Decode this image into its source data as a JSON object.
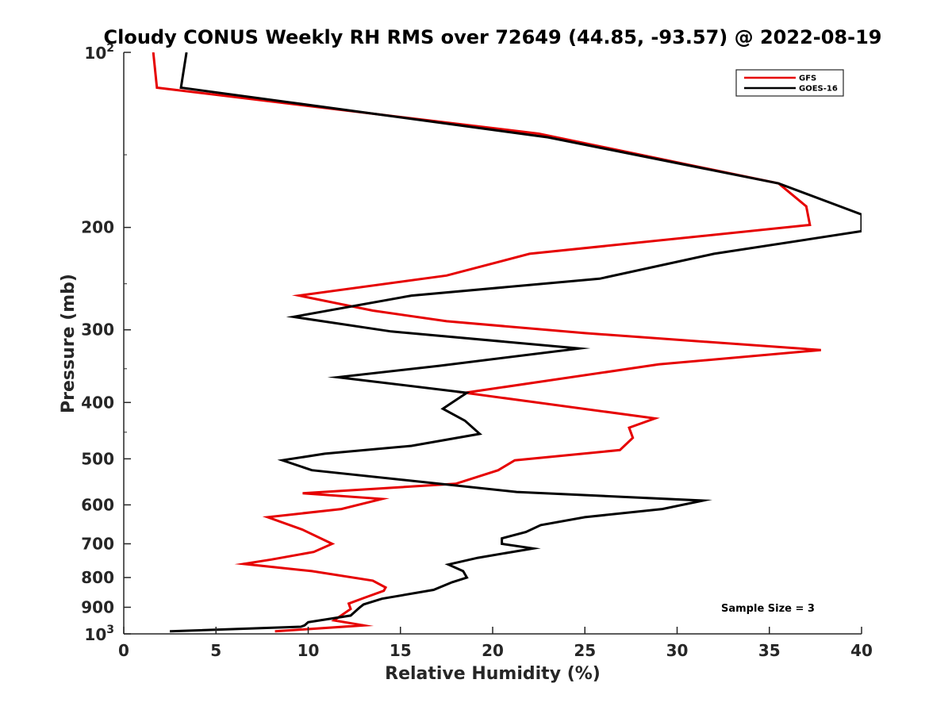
{
  "chart_data": {
    "type": "line",
    "title": "Cloudy CONUS Weekly RH RMS over 72649 (44.85, -93.57) @ 2022-08-19",
    "xlabel": "Relative Humidity (%)",
    "ylabel": "Pressure (mb)",
    "xlim": [
      0,
      40
    ],
    "ylim": [
      100,
      1000
    ],
    "y_scale": "log",
    "y_reversed": true,
    "grid": false,
    "legend_position": "top-right",
    "x_ticks": [
      "0",
      "5",
      "10",
      "15",
      "20",
      "25",
      "30",
      "35",
      "40"
    ],
    "y_ticks": [
      {
        "value": 100,
        "base": "10",
        "exp": "2"
      },
      {
        "value": 200,
        "label": "200"
      },
      {
        "value": 300,
        "label": "300"
      },
      {
        "value": 400,
        "label": "400"
      },
      {
        "value": 500,
        "label": "500"
      },
      {
        "value": 600,
        "label": "600"
      },
      {
        "value": 700,
        "label": "700"
      },
      {
        "value": 800,
        "label": "800"
      },
      {
        "value": 900,
        "label": "900"
      },
      {
        "value": 1000,
        "base": "10",
        "exp": "3"
      }
    ],
    "annotation": "Sample Size = 3",
    "series": [
      {
        "name": "GFS",
        "color": "#e60000",
        "points": [
          [
            1.6,
            100
          ],
          [
            1.8,
            115
          ],
          [
            22.5,
            138
          ],
          [
            35.5,
            168
          ],
          [
            37.0,
            184
          ],
          [
            37.2,
            198
          ],
          [
            22.0,
            222
          ],
          [
            17.5,
            242
          ],
          [
            9.5,
            262
          ],
          [
            13.5,
            278
          ],
          [
            17.5,
            290
          ],
          [
            25.0,
            304
          ],
          [
            37.8,
            325
          ],
          [
            29.0,
            344
          ],
          [
            18.5,
            385
          ],
          [
            28.8,
            426
          ],
          [
            27.4,
            442
          ],
          [
            27.6,
            460
          ],
          [
            26.9,
            483
          ],
          [
            21.2,
            503
          ],
          [
            20.3,
            523
          ],
          [
            18.0,
            552
          ],
          [
            9.7,
            573
          ],
          [
            14.0,
            586
          ],
          [
            11.8,
            610
          ],
          [
            7.8,
            630
          ],
          [
            9.7,
            662
          ],
          [
            11.3,
            700
          ],
          [
            10.3,
            723
          ],
          [
            8.0,
            745
          ],
          [
            6.5,
            758
          ],
          [
            10.2,
            780
          ],
          [
            13.5,
            810
          ],
          [
            14.2,
            832
          ],
          [
            14.1,
            843
          ],
          [
            13.0,
            868
          ],
          [
            12.2,
            887
          ],
          [
            12.3,
            906
          ],
          [
            11.4,
            948
          ],
          [
            13.0,
            967
          ],
          [
            8.2,
            990
          ]
        ]
      },
      {
        "name": "GOES-16",
        "color": "#000000",
        "points": [
          [
            3.4,
            100
          ],
          [
            3.1,
            115
          ],
          [
            23.0,
            140
          ],
          [
            35.5,
            168
          ],
          [
            40.0,
            190
          ],
          [
            40.0,
            203
          ],
          [
            32.0,
            222
          ],
          [
            25.8,
            245
          ],
          [
            15.6,
            262
          ],
          [
            9.2,
            285
          ],
          [
            14.5,
            302
          ],
          [
            24.7,
            323
          ],
          [
            17.1,
            346
          ],
          [
            11.6,
            362
          ],
          [
            18.6,
            385
          ],
          [
            17.3,
            410
          ],
          [
            18.5,
            430
          ],
          [
            19.3,
            453
          ],
          [
            15.6,
            475
          ],
          [
            10.9,
            490
          ],
          [
            8.6,
            503
          ],
          [
            10.2,
            523
          ],
          [
            21.3,
            570
          ],
          [
            31.4,
            590
          ],
          [
            29.2,
            610
          ],
          [
            25.0,
            630
          ],
          [
            22.6,
            650
          ],
          [
            21.8,
            668
          ],
          [
            20.5,
            685
          ],
          [
            20.5,
            700
          ],
          [
            22.2,
            713
          ],
          [
            19.2,
            740
          ],
          [
            17.6,
            760
          ],
          [
            18.4,
            780
          ],
          [
            18.6,
            800
          ],
          [
            17.8,
            815
          ],
          [
            16.8,
            840
          ],
          [
            14.0,
            870
          ],
          [
            13.0,
            890
          ],
          [
            12.8,
            900
          ],
          [
            12.3,
            930
          ],
          [
            10.0,
            955
          ],
          [
            9.8,
            967
          ],
          [
            9.6,
            972
          ],
          [
            2.5,
            990
          ]
        ]
      }
    ]
  }
}
